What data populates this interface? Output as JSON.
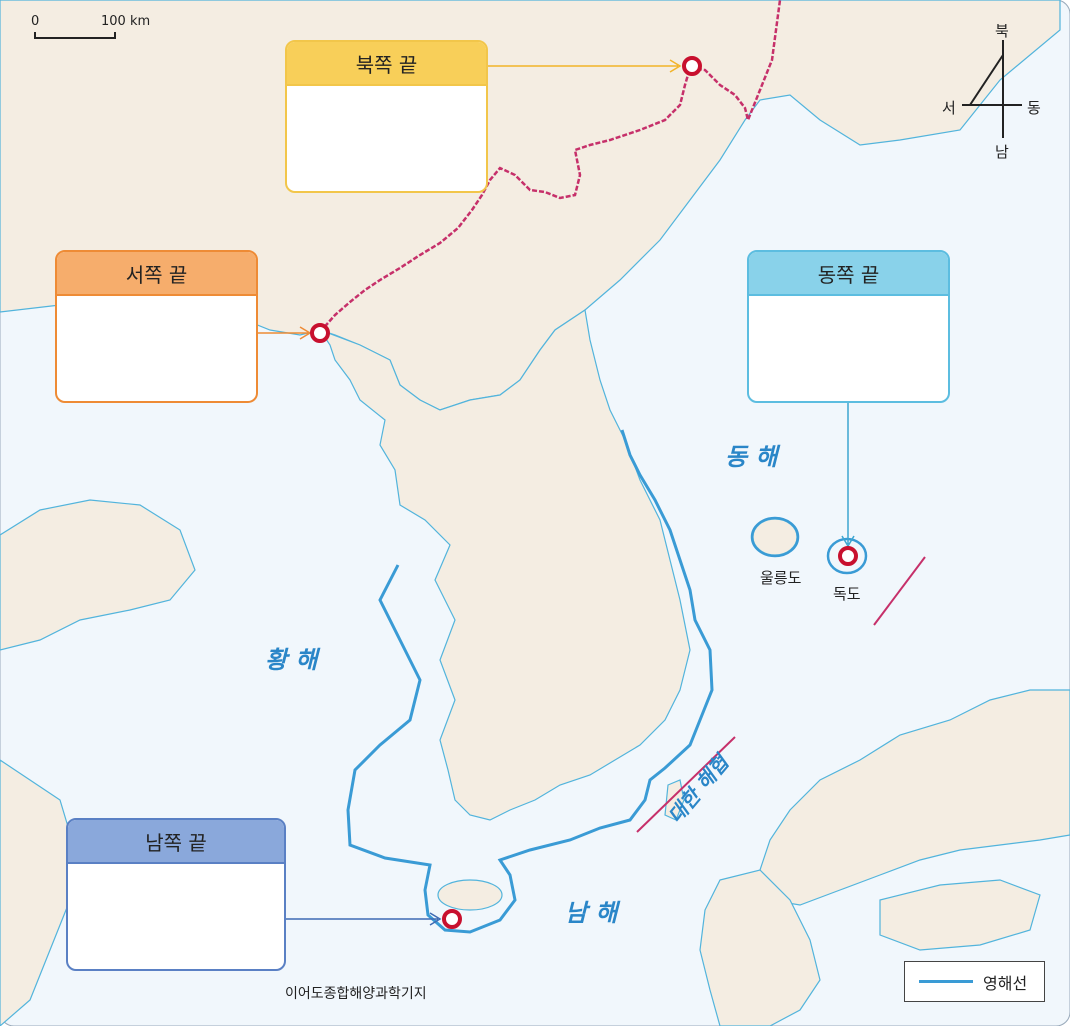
{
  "scale": {
    "zero": "0",
    "distance": "100 km"
  },
  "compass": {
    "north": "북",
    "south": "남",
    "east": "동",
    "west": "서"
  },
  "boxes": {
    "north": {
      "title": "북쪽 끝",
      "color": "#f6c545"
    },
    "west": {
      "title": "서쪽 끝",
      "color": "#f4a35a"
    },
    "east": {
      "title": "동쪽 끝",
      "color": "#7ccde8"
    },
    "south": {
      "title": "남쪽 끝",
      "color": "#7e9fd3"
    }
  },
  "seas": {
    "east": "동 해",
    "yellow": "황 해",
    "south": "남 해",
    "strait": "대한 해협"
  },
  "places": {
    "ulleungdo": "울릉도",
    "dokdo": "독도",
    "ieodo": "이어도종합해양과학기지"
  },
  "legend": {
    "territorial_line": "영해선"
  },
  "colors": {
    "sea": "#f1f7fc",
    "land": "#f4ede2",
    "coast": "#52b4dc",
    "territorial": "#3a9bd5",
    "border": "#c6306a",
    "marker": "#c8102e"
  }
}
